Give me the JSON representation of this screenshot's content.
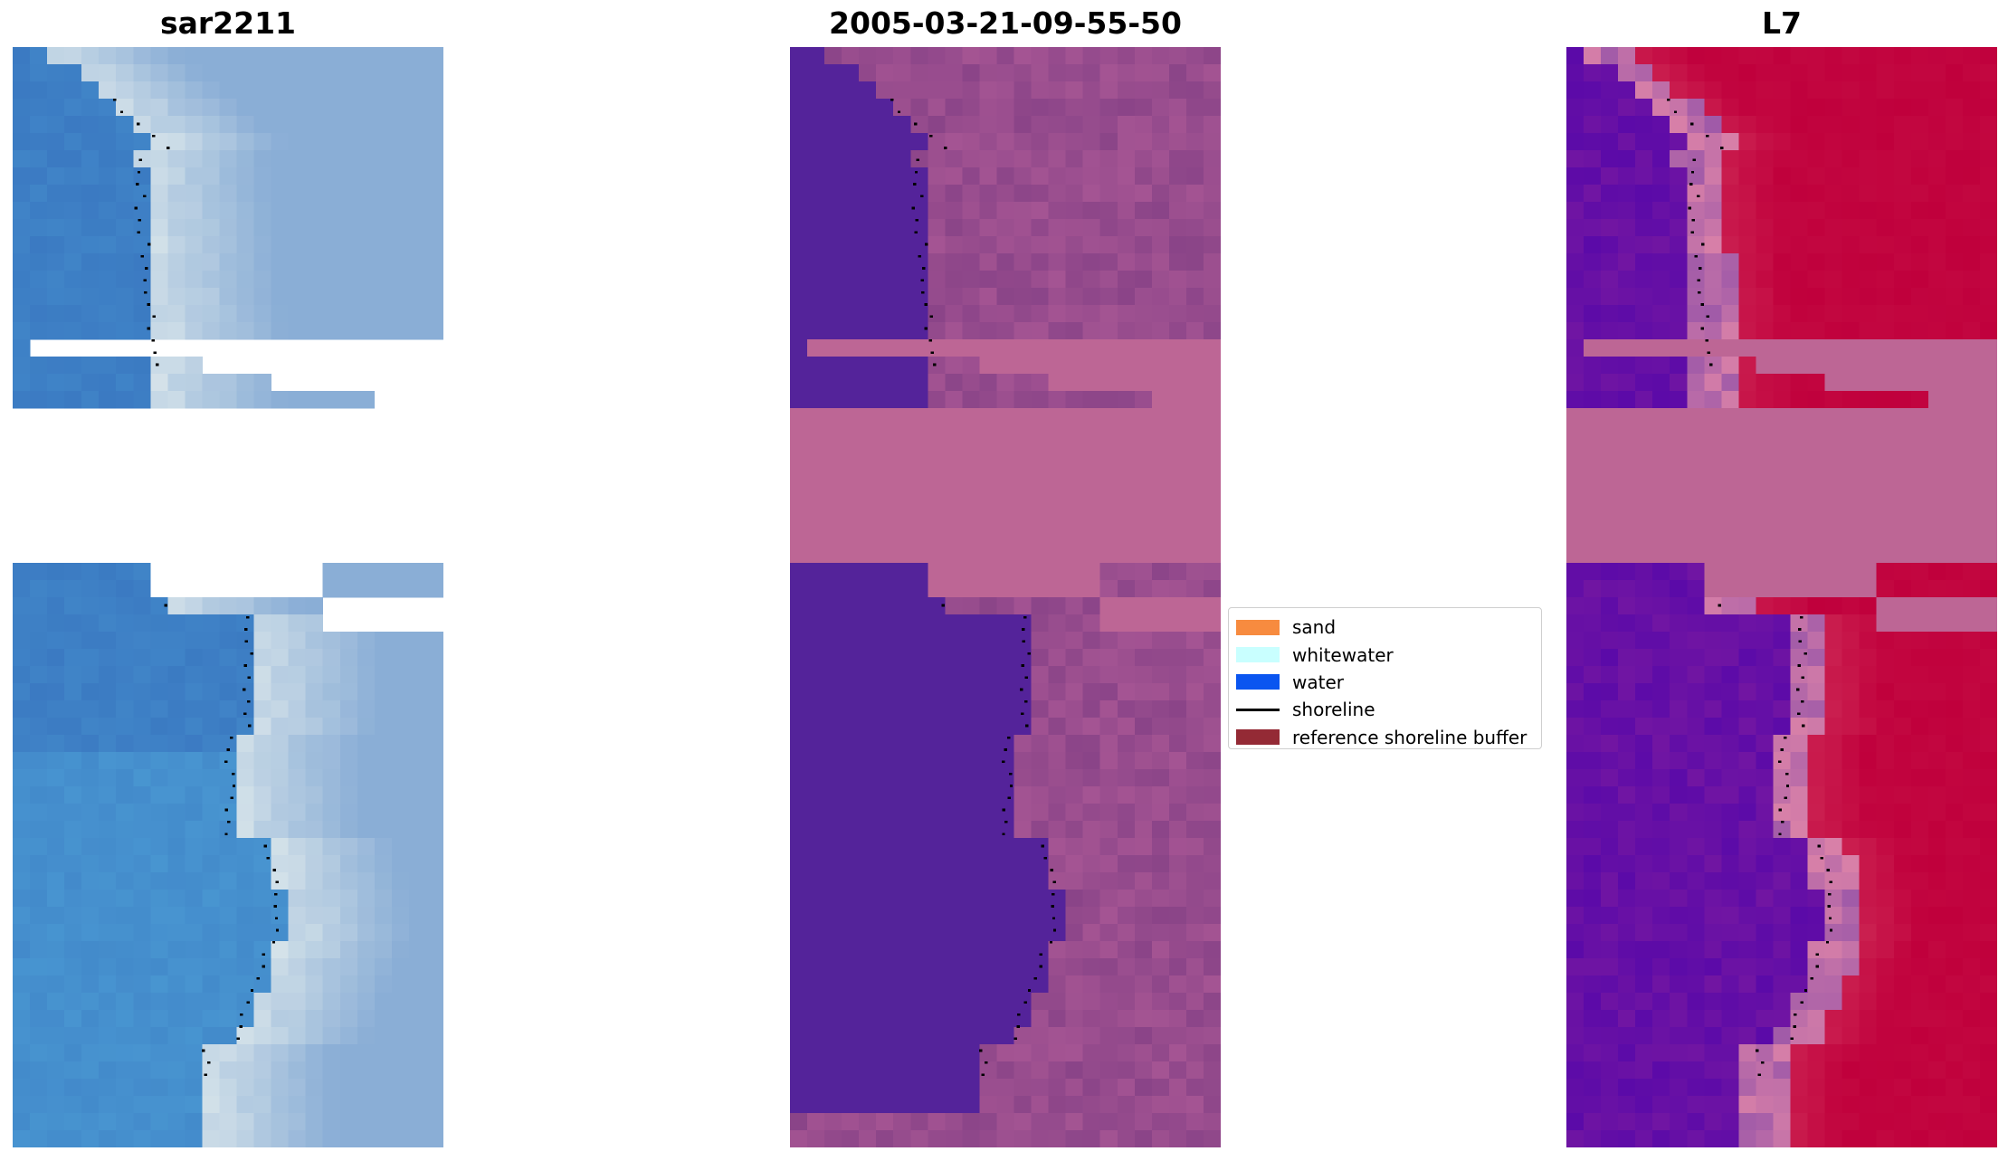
{
  "panels": [
    {
      "title": "sar2211",
      "style": "rgb"
    },
    {
      "title": "2005-03-21-09-55-50",
      "style": "classified"
    },
    {
      "title": "L7",
      "style": "index"
    }
  ],
  "legend": {
    "items": [
      {
        "label": "sand",
        "color": "#f78b3f",
        "kind": "patch"
      },
      {
        "label": "whitewater",
        "color": "#c9ffff",
        "kind": "patch"
      },
      {
        "label": "water",
        "color": "#0a55f0",
        "kind": "patch"
      },
      {
        "label": "shoreline",
        "color": "#000000",
        "kind": "line"
      },
      {
        "label": "reference shoreline buffer",
        "color": "#942a35",
        "kind": "patch"
      }
    ]
  },
  "colors": {
    "nodata_band": "#bd6695",
    "water_class": "#54239a",
    "land_class": "#8a4488",
    "index_high": "#c0003c",
    "index_low": "#5b0aa8",
    "rgb_water": "#3b7ac2",
    "rgb_white": "#eef4f0"
  }
}
